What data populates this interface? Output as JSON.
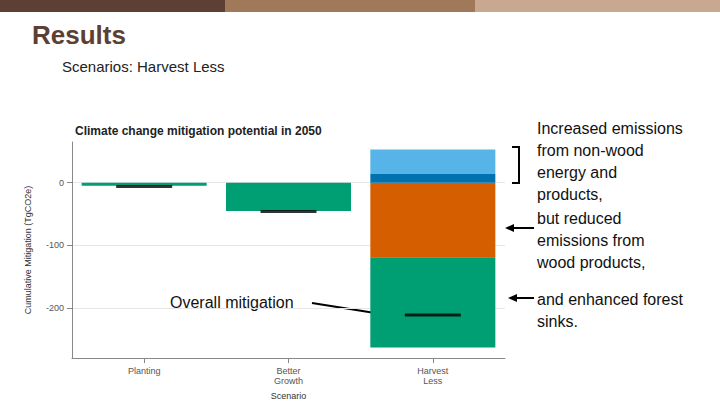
{
  "header": {
    "title": "Results",
    "subtitle": "Scenarios: Harvest Less"
  },
  "chart_data": {
    "type": "bar",
    "stacked": true,
    "title": "Climate change mitigation potential in 2050",
    "x_label": "Scenario",
    "y_label": "Cumulative Mitigation (TgCO2e)",
    "categories": [
      "Planting",
      "Better\nGrowth",
      "Harvest\nLess"
    ],
    "series": [
      {
        "color": "#D55E00",
        "values": [
          0,
          0,
          -119
        ]
      },
      {
        "color": "#009E73",
        "values": [
          -5,
          -45,
          -144
        ]
      },
      {
        "color": "#0072B2",
        "values": [
          0,
          0,
          14
        ]
      },
      {
        "color": "#56B4E9",
        "values": [
          0,
          0,
          39
        ]
      },
      {
        "type": "scatter",
        "marker": "line",
        "color": "#000000",
        "values": [
          -6,
          -46,
          -211
        ]
      }
    ],
    "ylim": [
      -280,
      65
    ],
    "yticks": [
      -200,
      -100,
      0
    ],
    "grid": true,
    "annotations": [
      "Increased emissions\nfrom non-wood\nenergy and\nproducts,",
      "but reduced\nemissions from\nwood products,",
      "and enhanced forest\nsinks.",
      "Overall mitigation"
    ]
  }
}
